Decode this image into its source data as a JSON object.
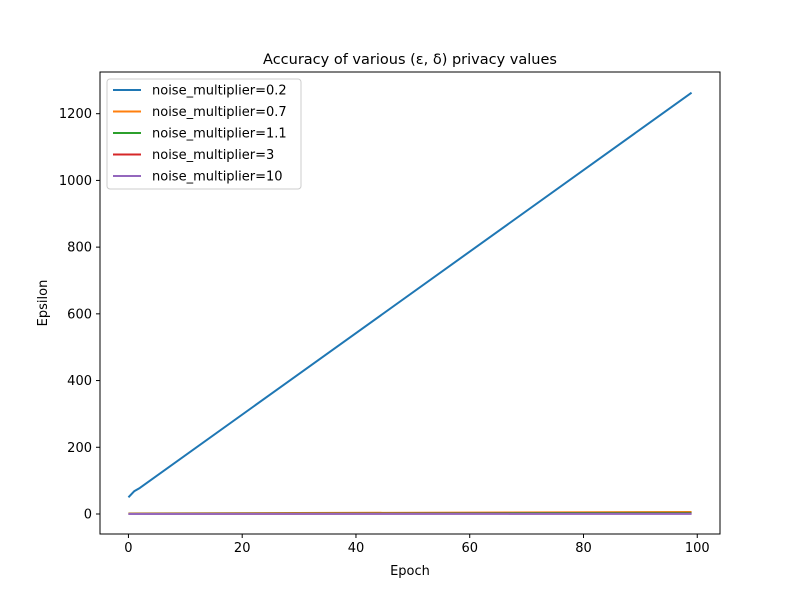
{
  "chart_data": {
    "type": "line",
    "title": "Accuracy of various (ε, δ) privacy values",
    "xlabel": "Epoch",
    "ylabel": "Epsilon",
    "xlim": [
      -5,
      104
    ],
    "ylim": [
      -60,
      1325
    ],
    "xticks": [
      0,
      20,
      40,
      60,
      80,
      100
    ],
    "yticks": [
      0,
      200,
      400,
      600,
      800,
      1000,
      1200
    ],
    "grid": false,
    "legend_position": "top-left",
    "series": [
      {
        "name": "noise_multiplier=0.2",
        "color": "#1f77b4",
        "x": [
          0,
          1,
          2,
          99
        ],
        "y": [
          50,
          68,
          78,
          1263
        ]
      },
      {
        "name": "noise_multiplier=0.7",
        "color": "#ff7f0e",
        "x": [
          0,
          99
        ],
        "y": [
          1.5,
          6
        ]
      },
      {
        "name": "noise_multiplier=1.1",
        "color": "#2ca02c",
        "x": [
          0,
          99
        ],
        "y": [
          0.8,
          3.5
        ]
      },
      {
        "name": "noise_multiplier=3",
        "color": "#d62728",
        "x": [
          0,
          99
        ],
        "y": [
          0.3,
          1.2
        ]
      },
      {
        "name": "noise_multiplier=10",
        "color": "#9467bd",
        "x": [
          0,
          99
        ],
        "y": [
          0.1,
          0.4
        ]
      }
    ]
  }
}
